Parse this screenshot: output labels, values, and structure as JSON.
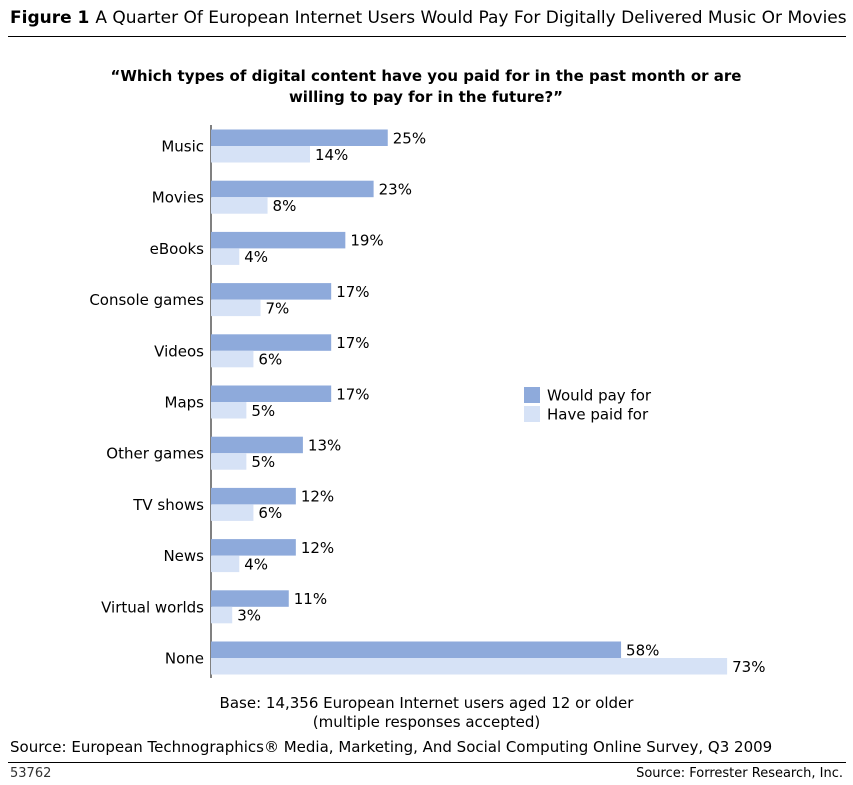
{
  "chart_data": {
    "type": "bar",
    "orientation": "horizontal",
    "figure_label": "Figure 1",
    "title": "A Quarter Of European Internet Users Would Pay For Digitally Delivered Music Or Movies",
    "subtitle": "“Which types of digital content have you paid for in the past month or are willing to pay for in the future?”",
    "categories": [
      "Music",
      "Movies",
      "eBooks",
      "Console games",
      "Videos",
      "Maps",
      "Other games",
      "TV shows",
      "News",
      "Virtual worlds",
      "None"
    ],
    "series": [
      {
        "name": "Would pay for",
        "color": "#8eaadb",
        "values": [
          25,
          23,
          19,
          17,
          17,
          17,
          13,
          12,
          12,
          11,
          58
        ],
        "value_labels": [
          "25%",
          "23%",
          "19%",
          "17%",
          "17%",
          "17%",
          "13%",
          "12%",
          "12%",
          "11%",
          "58%"
        ]
      },
      {
        "name": "Have paid for",
        "color": "#d6e2f6",
        "values": [
          14,
          8,
          4,
          7,
          6,
          5,
          5,
          6,
          4,
          3,
          73
        ],
        "value_labels": [
          "14%",
          "8%",
          "4%",
          "7%",
          "6%",
          "5%",
          "5%",
          "6%",
          "4%",
          "3%",
          "73%"
        ]
      }
    ],
    "xlim": [
      0,
      80
    ],
    "legend": "right",
    "notes": [
      "Base: 14,356 European Internet users aged 12 or older",
      "(multiple responses accepted)"
    ],
    "source": "Source: European Technographics® Media, Marketing, And Social Computing Online Survey, Q3 2009",
    "figure_id": "53762",
    "credit": "Source: Forrester Research, Inc."
  }
}
